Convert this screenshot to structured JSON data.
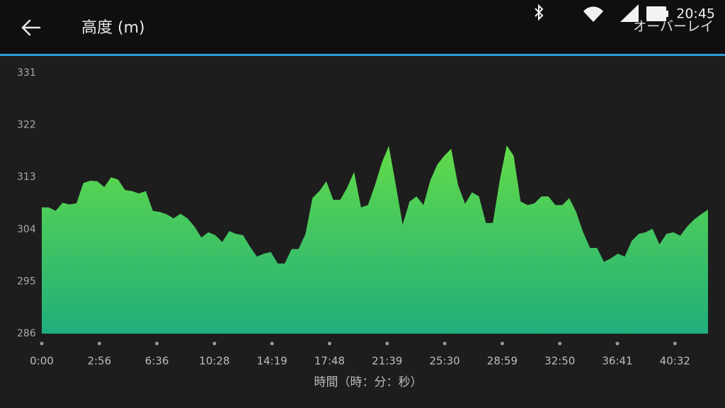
{
  "status_bar": {
    "time": "20:45"
  },
  "header": {
    "title": "高度 (m)",
    "action": "オーバーレイ"
  },
  "chart_data": {
    "type": "area",
    "x_label": "時間（時：分：秒）",
    "x_tick_labels": [
      "0:00",
      "2:56",
      "6:36",
      "10:28",
      "14:19",
      "17:48",
      "21:39",
      "25:30",
      "28:59",
      "32:50",
      "36:41",
      "40:32"
    ],
    "values": [
      307.8,
      307.8,
      307.2,
      308.6,
      308.3,
      308.5,
      312.0,
      312.4,
      312.3,
      311.3,
      313.0,
      312.6,
      310.8,
      310.6,
      310.2,
      310.6,
      307.2,
      307.0,
      306.6,
      305.9,
      306.7,
      305.9,
      304.5,
      302.6,
      303.5,
      303.0,
      301.8,
      303.7,
      303.2,
      303.0,
      301.0,
      299.3,
      299.8,
      300.1,
      298.1,
      298.1,
      300.6,
      300.6,
      303.2,
      309.4,
      310.6,
      312.3,
      309.1,
      309.1,
      311.2,
      313.9,
      307.8,
      308.2,
      311.6,
      315.5,
      318.4,
      311.8,
      304.8,
      308.8,
      309.7,
      308.2,
      312.5,
      315.2,
      316.7,
      317.9,
      311.6,
      308.4,
      310.4,
      309.7,
      305.1,
      305.1,
      312.5,
      318.5,
      316.7,
      308.8,
      308.2,
      308.5,
      309.7,
      309.7,
      308.2,
      308.2,
      309.4,
      307.0,
      303.5,
      300.8,
      300.8,
      298.4,
      299.0,
      299.8,
      299.3,
      302.0,
      303.2,
      303.5,
      304.1,
      301.4,
      303.2,
      303.5,
      302.9,
      304.5,
      305.7,
      306.6,
      307.4
    ],
    "ylim": [
      286,
      331
    ],
    "yticks": [
      286,
      295,
      304,
      313,
      322,
      331
    ],
    "color_top": "#62db48",
    "color_bottom": "#20ae7c"
  }
}
